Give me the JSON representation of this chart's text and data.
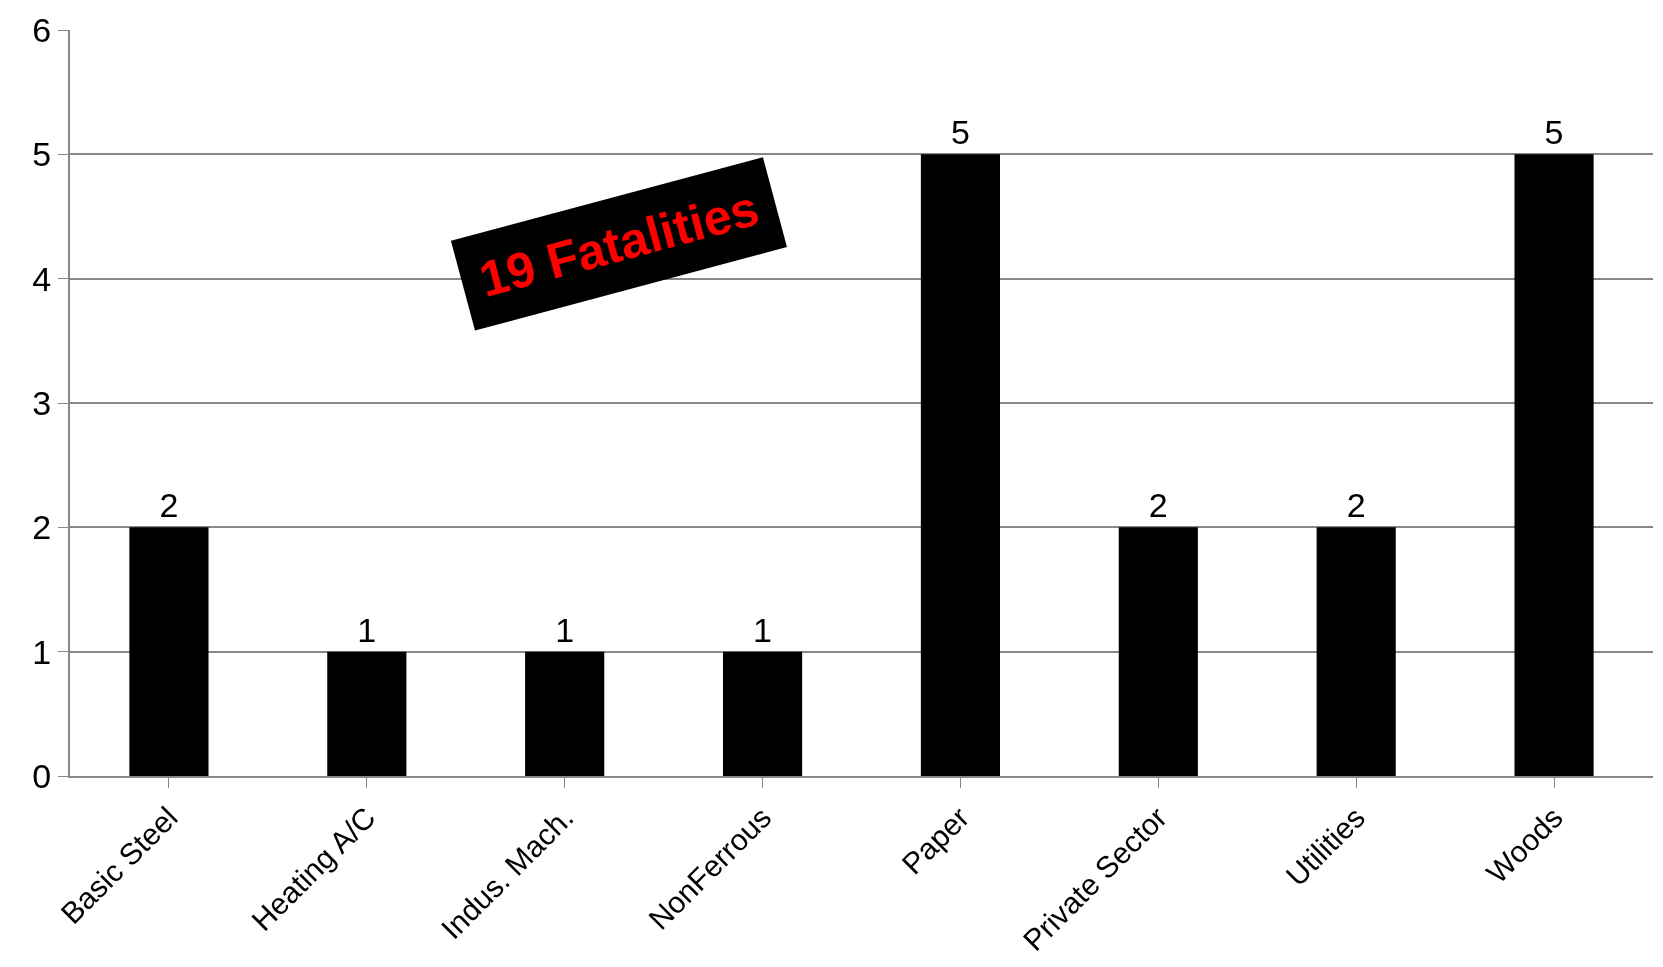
{
  "chart_data": {
    "type": "bar",
    "categories": [
      "Basic Steel",
      "Heating A/C",
      "Indus. Mach.",
      "NonFerrous",
      "Paper",
      "Private Sector",
      "Utilities",
      "Woods"
    ],
    "values": [
      2,
      1,
      1,
      1,
      5,
      2,
      2,
      5
    ],
    "color": "#000000",
    "ylim": [
      0,
      6
    ],
    "yticks": [
      0,
      1,
      2,
      3,
      4,
      5,
      6
    ],
    "grid": "y",
    "data_labels": true,
    "legend": false,
    "annotations": [
      "19 Fatalities"
    ]
  }
}
